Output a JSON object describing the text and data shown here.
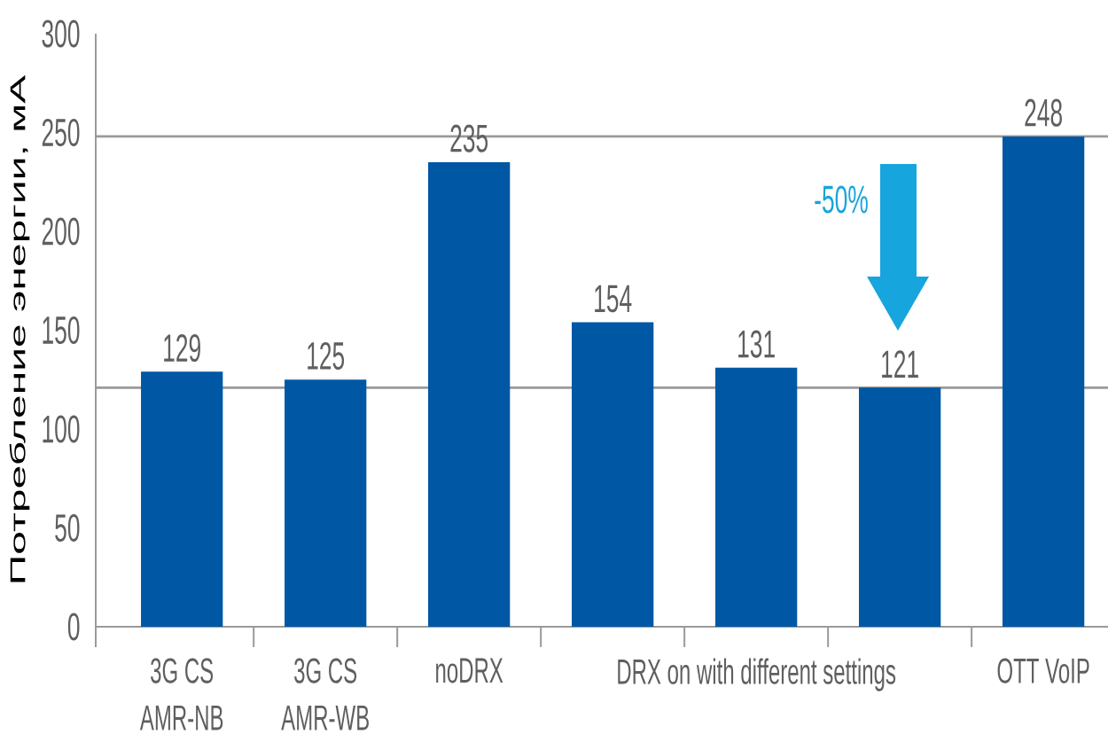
{
  "chart_data": {
    "type": "bar",
    "ylabel": "Потребление энергии, мА",
    "categories": [
      "3G CS AMR-NB",
      "3G CS AMR-WB",
      "noDRX",
      null,
      "DRX on with different settings",
      null,
      "OTT VoIP"
    ],
    "values": [
      129,
      125,
      235,
      154,
      131,
      121,
      248
    ],
    "color": "#0057a4",
    "ylim": [
      0,
      300
    ],
    "yticks": [
      0,
      50,
      100,
      150,
      200,
      250,
      300
    ],
    "data_labels": true,
    "ref_lines": [
      {
        "axis": "y",
        "value": 248,
        "color": "#9a9a9a"
      },
      {
        "axis": "y",
        "value": 121,
        "color": "#9a9a9a"
      }
    ],
    "annotations": [
      "-50%"
    ]
  }
}
